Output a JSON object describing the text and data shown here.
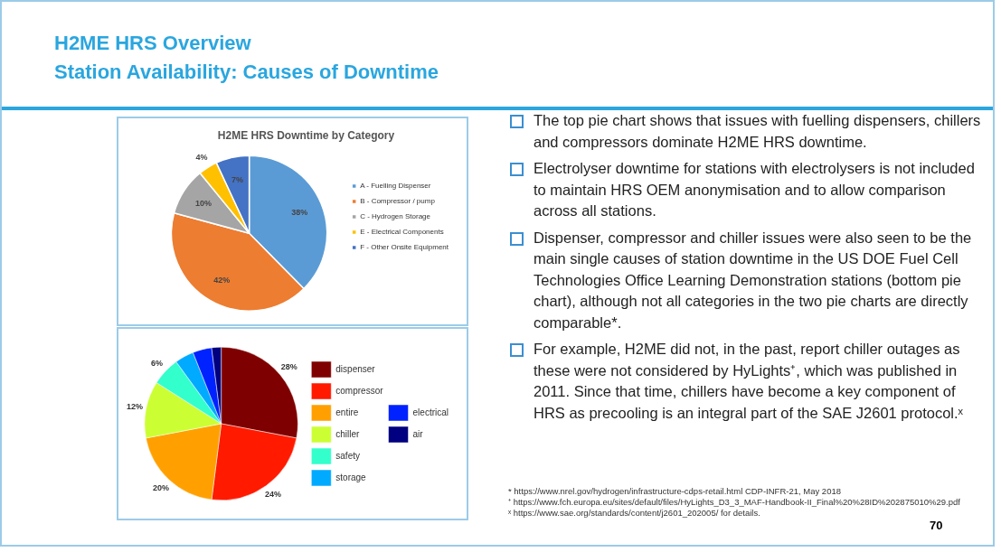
{
  "chart_data": [
    {
      "type": "other",
      "title": "H2ME HRS Overview",
      "subtitle": "Station Availability: Causes of Downtime"
    },
    {
      "type": "pie",
      "title": "H2ME HRS Downtime by Category",
      "categories": [
        "A - Fuelling Dispenser",
        "B - Compressor / pump",
        "C - Hydrogen Storage",
        "E - Electrical Components",
        "F - Other Onsite Equipment"
      ],
      "values": [
        38,
        42,
        10,
        4,
        7
      ],
      "colors": [
        "#5b9bd5",
        "#ed7d31",
        "#a5a5a5",
        "#ffc000",
        "#4472c4"
      ],
      "value_labels": [
        "38%",
        "42%",
        "10%",
        "4%",
        "7%"
      ],
      "legend": "right"
    },
    {
      "type": "pie",
      "categories": [
        "dispenser",
        "compressor",
        "entire",
        "chiller",
        "safety",
        "storage",
        "electrical",
        "air"
      ],
      "values": [
        28,
        24,
        20,
        12,
        6,
        4,
        4,
        2
      ],
      "colors": [
        "#7f0000",
        "#ff1a00",
        "#ffa000",
        "#ccff33",
        "#33ffcc",
        "#00aaff",
        "#0022ff",
        "#000080"
      ],
      "value_labels": [
        "28%",
        "24%",
        "20%",
        "12%",
        "6%",
        null,
        null,
        null
      ],
      "legend": "right"
    },
    {
      "type": "other",
      "annotations": [
        "The top pie chart shows that issues with fuelling dispensers, chillers and compressors dominate H2ME HRS downtime.",
        "Electrolyser downtime for stations with electrolysers is not included to maintain HRS OEM anonymisation and to allow comparison across all stations.",
        "Dispenser, compressor and chiller issues were also seen to be the main single causes of station downtime in the US DOE Fuel Cell Technologies Office Learning Demonstration stations (bottom pie chart), although not all categories in the two pie charts are directly comparable*.",
        "For example, H2ME did not, in the past, report chiller outages as these were not considered by HyLights⁺, which was published in 2011. Since that time, chillers have become a key component of HRS as precooling is an integral part of the SAE J2601 protocol.ˣ"
      ]
    },
    {
      "type": "other",
      "annotations": [
        "* https://www.nrel.gov/hydrogen/infrastructure-cdps-retail.html CDP-INFR-21, May 2018",
        "⁺ https://www.fch.europa.eu/sites/default/files/HyLights_D3_3_MAF-Handbook-II_Final%20%28ID%202875010%29.pdf",
        "ˣ https://www.sae.org/standards/content/j2601_202005/ for details.",
        "70"
      ]
    }
  ]
}
